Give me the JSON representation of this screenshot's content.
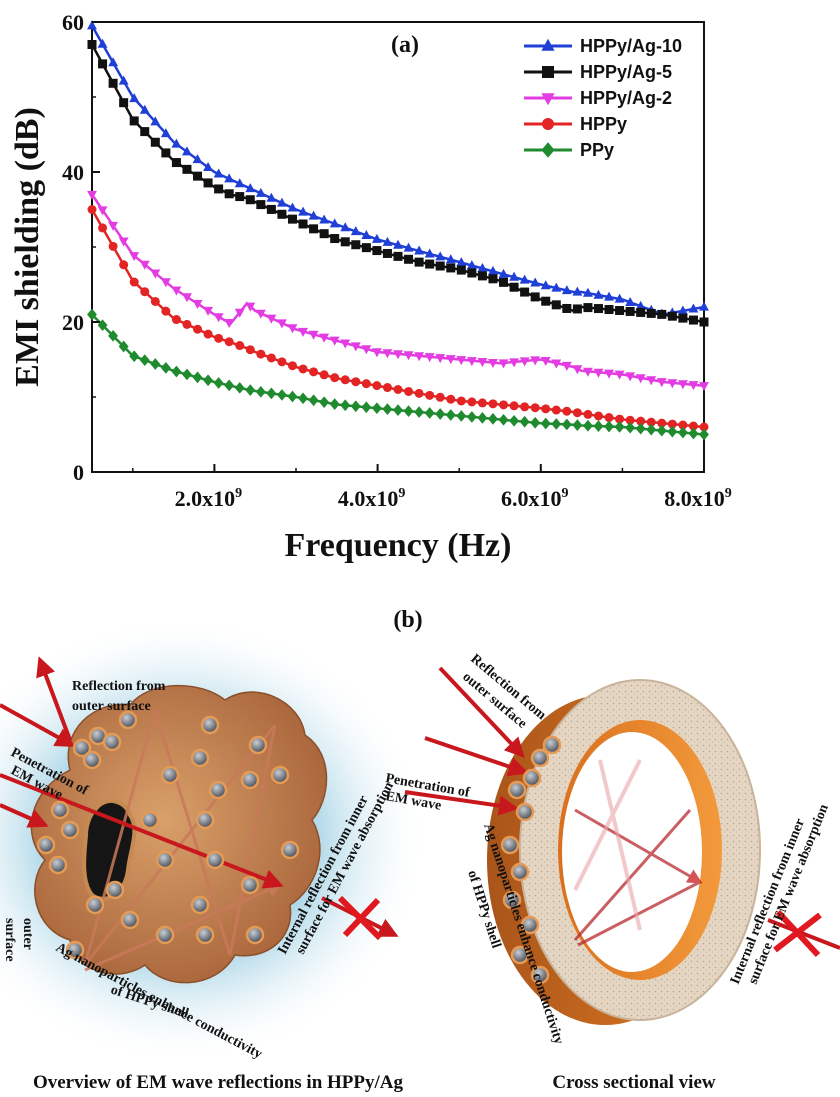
{
  "chart_data": {
    "type": "line",
    "panel_label": "(a)",
    "xlabel": "Frequency (Hz)",
    "ylabel": "EMI shielding (dB)",
    "xlim": [
      500000000,
      8000000000
    ],
    "ylim": [
      0,
      60
    ],
    "x_ticks": [
      {
        "value": 2000000000,
        "mantissa": "2.0x10",
        "exp": "9"
      },
      {
        "value": 4000000000,
        "mantissa": "4.0x10",
        "exp": "9"
      },
      {
        "value": 6000000000,
        "mantissa": "6.0x10",
        "exp": "9"
      },
      {
        "value": 8000000000,
        "mantissa": "8.0x10",
        "exp": "9"
      }
    ],
    "y_ticks": [
      {
        "value": 0,
        "label": "0"
      },
      {
        "value": 20,
        "label": "20"
      },
      {
        "value": 40,
        "label": "40"
      },
      {
        "value": 60,
        "label": "60"
      }
    ],
    "grid": false,
    "legend_position": "top-right",
    "x": [
      500000000,
      1000000000,
      1500000000,
      2000000000,
      2200000000,
      2400000000,
      2500000000,
      3000000000,
      3500000000,
      4000000000,
      4500000000,
      5000000000,
      5500000000,
      6000000000,
      6400000000,
      6500000000,
      7000000000,
      7500000000,
      8000000000
    ],
    "series": [
      {
        "name": "HPPy/Ag-10",
        "color": "#1f3fd6",
        "marker": "triangle-up",
        "values": [
          59.5,
          50,
          44,
          40,
          39,
          38,
          37.5,
          35,
          33,
          31,
          29.5,
          28,
          26.5,
          25,
          24,
          24,
          23,
          21,
          22
        ]
      },
      {
        "name": "HPPy/Ag-5",
        "color": "#111111",
        "marker": "square",
        "values": [
          57,
          47,
          41.5,
          38,
          37,
          36.5,
          36,
          33.5,
          31,
          29.5,
          28,
          27,
          25.5,
          23,
          21.5,
          22,
          21.5,
          21,
          20
        ]
      },
      {
        "name": "HPPy/Ag-2",
        "color": "#e23ce2",
        "marker": "triangle-down",
        "values": [
          37,
          29,
          24.5,
          21,
          19.8,
          22.5,
          21.5,
          19,
          17.5,
          16,
          15.5,
          15,
          14.5,
          15,
          14,
          13.5,
          13,
          12,
          11.5
        ]
      },
      {
        "name": "HPPy",
        "color": "#e22424",
        "marker": "circle",
        "values": [
          35,
          25.5,
          20.5,
          18,
          17.3,
          16.5,
          16,
          14,
          12.5,
          11.5,
          10.5,
          9.5,
          9,
          8.5,
          8,
          7.8,
          7,
          6.5,
          6
        ]
      },
      {
        "name": "PPy",
        "color": "#1f8a2e",
        "marker": "diamond",
        "values": [
          21,
          15.5,
          13.5,
          12,
          11.5,
          11,
          10.8,
          10,
          9,
          8.5,
          8,
          7.5,
          7,
          6.5,
          6.3,
          6.2,
          6,
          5.5,
          5
        ]
      }
    ]
  },
  "diagram": {
    "panel_label": "(b)",
    "left": {
      "reflection_label": [
        "Reflection from",
        "outer surface"
      ],
      "penetration_label": [
        "Penetration of",
        "EM wave"
      ],
      "internal_label": [
        "Internal reflection from inner",
        "surface for EM wave absorption"
      ],
      "ag_label": [
        "Ag nanoparticles enhance conductivity",
        "of HPPy shell"
      ],
      "outer_edge_label": [
        "outer",
        "surface"
      ],
      "caption": "Overview of EM wave reflections in HPPy/Ag"
    },
    "right": {
      "reflection_label": [
        "Reflection from",
        "outer surface"
      ],
      "penetration_label": [
        "Penetration of",
        "EM wave"
      ],
      "internal_label": [
        "Internal reflection from inner",
        "surface for EM wave absorption"
      ],
      "ag_label": [
        "Ag nanoparticles enhance conductivity",
        "of HPPy shell"
      ],
      "caption": "Cross sectional view"
    },
    "colors": {
      "wave": "#c8171d",
      "shell": "#c07a35",
      "glow": "#4aa8c8",
      "ring_face": "#e3d3bf"
    }
  }
}
